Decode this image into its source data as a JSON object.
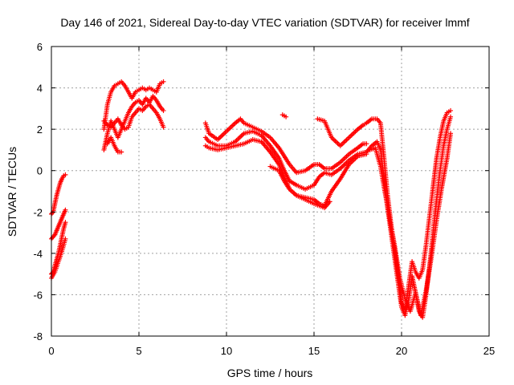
{
  "chart_data": {
    "type": "scatter",
    "title": "Day 146 of 2021, Sidereal Day-to-day VTEC variation (SDTVAR) for receiver lmmf",
    "xlabel": "GPS time / hours",
    "ylabel": "SDTVAR / TECUs",
    "xlim": [
      0,
      25
    ],
    "ylim": [
      -8,
      6
    ],
    "xticks": [
      0,
      5,
      10,
      15,
      20,
      25
    ],
    "yticks": [
      -8,
      -6,
      -4,
      -2,
      0,
      2,
      4,
      6
    ],
    "grid": true,
    "marker": "plus",
    "color": "#ff0000",
    "series": [
      {
        "x": [
          0.0,
          0.1,
          0.2,
          0.3,
          0.4,
          0.5,
          0.6,
          0.7,
          0.8
        ],
        "y": [
          -2.1,
          -2.0,
          -1.6,
          -1.2,
          -0.9,
          -0.6,
          -0.4,
          -0.25,
          -0.2
        ]
      },
      {
        "x": [
          0.0,
          0.1,
          0.2,
          0.3,
          0.4,
          0.5,
          0.6,
          0.7,
          0.8
        ],
        "y": [
          -5.0,
          -4.9,
          -4.6,
          -4.3,
          -4.0,
          -3.6,
          -3.2,
          -2.8,
          -2.5
        ]
      },
      {
        "x": [
          0.0,
          0.1,
          0.2,
          0.3,
          0.4,
          0.5,
          0.6,
          0.7,
          0.8
        ],
        "y": [
          -3.3,
          -3.2,
          -3.1,
          -2.9,
          -2.7,
          -2.5,
          -2.3,
          -2.1,
          -1.9
        ]
      },
      {
        "x": [
          0.0,
          0.2,
          0.4,
          0.6,
          0.8
        ],
        "y": [
          -5.2,
          -4.9,
          -4.4,
          -3.9,
          -3.3
        ]
      },
      {
        "x": [
          3.0,
          3.2,
          3.4,
          3.6,
          3.8,
          4.0,
          4.2,
          4.4,
          4.6,
          4.8,
          5.0,
          5.2,
          5.4,
          5.6,
          5.8,
          6.0,
          6.2,
          6.4
        ],
        "y": [
          2.0,
          3.2,
          3.8,
          4.1,
          4.2,
          4.3,
          4.1,
          3.8,
          3.5,
          3.8,
          3.9,
          4.0,
          3.9,
          4.0,
          3.9,
          3.8,
          4.2,
          4.3
        ]
      },
      {
        "x": [
          3.0,
          3.2,
          3.4,
          3.6,
          3.8,
          4.0,
          4.2,
          4.4,
          4.6,
          4.8,
          5.0,
          5.2,
          5.4,
          5.6,
          5.8,
          6.0,
          6.2,
          6.4
        ],
        "y": [
          1.0,
          1.8,
          2.4,
          2.0,
          1.6,
          2.0,
          2.4,
          2.8,
          3.1,
          3.3,
          3.4,
          3.2,
          3.5,
          3.3,
          3.6,
          3.4,
          3.1,
          2.9
        ]
      },
      {
        "x": [
          3.0,
          3.2,
          3.4,
          3.6,
          3.8,
          4.0,
          4.2,
          4.4,
          4.6,
          4.8,
          5.0,
          5.2,
          5.4,
          5.6,
          5.8,
          6.0,
          6.2,
          6.4
        ],
        "y": [
          2.4,
          2.2,
          2.1,
          2.3,
          2.5,
          2.2,
          2.0,
          2.1,
          2.6,
          2.8,
          3.0,
          2.9,
          3.1,
          3.2,
          3.0,
          2.8,
          2.5,
          2.1
        ]
      },
      {
        "x": [
          3.2,
          3.4,
          3.6,
          3.8,
          4.0
        ],
        "y": [
          1.3,
          1.6,
          1.2,
          0.9,
          0.9
        ]
      },
      {
        "x": [
          8.8,
          9.0,
          9.5,
          10.0,
          10.5,
          10.8,
          11.0,
          11.5,
          12.0,
          12.5,
          13.0,
          13.3,
          13.6,
          14.0,
          14.5,
          15.0,
          15.3,
          15.6,
          16.0,
          16.5,
          17.0,
          17.5,
          17.8,
          18.0
        ],
        "y": [
          2.3,
          1.8,
          1.5,
          1.9,
          2.3,
          2.5,
          2.3,
          2.1,
          1.9,
          1.6,
          1.1,
          0.7,
          0.3,
          -0.1,
          0.0,
          0.3,
          0.3,
          0.1,
          0.1,
          0.4,
          0.8,
          1.1,
          1.3,
          1.3
        ]
      },
      {
        "x": [
          8.8,
          9.0,
          9.5,
          10.0,
          10.5,
          11.0,
          11.5,
          12.0,
          12.5,
          13.0,
          13.3,
          13.6,
          14.0,
          14.5,
          15.0,
          15.3,
          15.6,
          16.0,
          16.5,
          17.0,
          17.5,
          18.0
        ],
        "y": [
          1.6,
          1.4,
          1.2,
          1.2,
          1.4,
          1.8,
          1.9,
          1.7,
          1.2,
          0.6,
          0.0,
          -0.5,
          -0.7,
          -0.9,
          -0.7,
          -0.3,
          -0.1,
          -0.2,
          0.1,
          0.5,
          0.8,
          0.9
        ]
      },
      {
        "x": [
          8.8,
          9.0,
          9.5,
          10.0,
          10.5,
          11.0,
          11.5,
          12.0,
          12.5,
          13.0,
          13.3,
          13.6,
          14.0,
          14.5,
          15.0,
          15.3,
          15.6,
          16.0,
          16.5,
          17.0,
          17.5,
          18.0
        ],
        "y": [
          1.2,
          1.1,
          1.0,
          1.1,
          1.2,
          1.3,
          1.5,
          1.4,
          0.9,
          0.3,
          -0.3,
          -0.9,
          -1.2,
          -1.3,
          -1.4,
          -1.6,
          -1.7,
          -1.0,
          -0.4,
          0.3,
          0.7,
          0.8
        ]
      },
      {
        "x": [
          12.5,
          13.0,
          13.3,
          13.6,
          14.0,
          14.5,
          15.0,
          15.3,
          15.6,
          15.9
        ],
        "y": [
          0.2,
          0.0,
          -0.5,
          -0.9,
          -1.2,
          -1.4,
          -1.6,
          -1.7,
          -1.8,
          -1.5
        ]
      },
      {
        "x": [
          13.2,
          13.4
        ],
        "y": [
          2.7,
          2.6
        ]
      },
      {
        "x": [
          15.2,
          15.6,
          16.0,
          16.5,
          17.0,
          17.5,
          17.8,
          18.0,
          18.3,
          18.6,
          18.8,
          19.0,
          19.2,
          19.4,
          19.6,
          19.8,
          20.0,
          20.2,
          20.4,
          20.6,
          20.8,
          21.0,
          21.2,
          21.4,
          21.6,
          21.8,
          22.0,
          22.2,
          22.4,
          22.6,
          22.8
        ],
        "y": [
          2.5,
          2.4,
          1.6,
          1.2,
          1.6,
          2.0,
          2.2,
          2.3,
          2.5,
          2.5,
          2.3,
          0.6,
          -1.2,
          -2.6,
          -3.8,
          -5.0,
          -6.4,
          -6.7,
          -5.6,
          -4.4,
          -4.9,
          -5.2,
          -4.8,
          -3.6,
          -2.2,
          -0.8,
          0.6,
          1.6,
          2.4,
          2.8,
          2.9
        ]
      },
      {
        "x": [
          18.0,
          18.3,
          18.6,
          18.8,
          19.0,
          19.2,
          19.4,
          19.6,
          19.8,
          20.0,
          20.2,
          20.4,
          20.6,
          20.8,
          21.0,
          21.2,
          21.4,
          21.6,
          21.8,
          22.0,
          22.2,
          22.4,
          22.6,
          22.8
        ],
        "y": [
          0.9,
          1.2,
          1.4,
          1.0,
          -0.4,
          -1.8,
          -3.0,
          -4.2,
          -5.4,
          -6.6,
          -7.0,
          -6.3,
          -5.1,
          -5.9,
          -6.8,
          -7.1,
          -6.0,
          -4.6,
          -3.0,
          -1.4,
          0.0,
          1.2,
          2.0,
          2.6
        ]
      },
      {
        "x": [
          18.2,
          18.5,
          18.8,
          19.0,
          19.3,
          19.6,
          19.9,
          20.2,
          20.5,
          20.8,
          21.1,
          21.4,
          21.7,
          22.0,
          22.3,
          22.6,
          22.8
        ],
        "y": [
          1.0,
          1.1,
          0.2,
          -0.8,
          -2.2,
          -3.6,
          -5.2,
          -6.2,
          -6.8,
          -5.9,
          -7.0,
          -5.8,
          -4.2,
          -2.4,
          -0.8,
          0.6,
          1.8
        ]
      }
    ]
  }
}
